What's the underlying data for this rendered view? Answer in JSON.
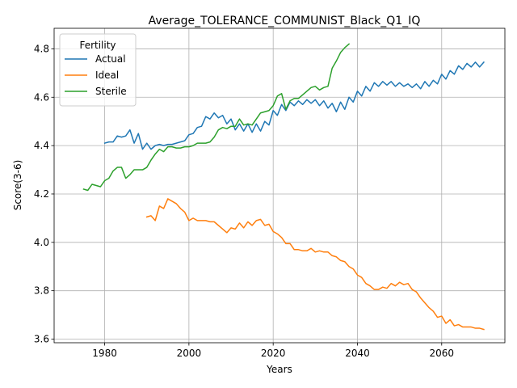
{
  "chart_data": {
    "type": "line",
    "title": "Average_TOLERANCE_COMMUNIST_Black_Q1_IQ",
    "xlabel": "Years",
    "ylabel": "Score(3-6)",
    "xlim": [
      1968,
      2075
    ],
    "ylim": [
      3.585,
      4.885
    ],
    "xticks": [
      1980,
      2000,
      2020,
      2040,
      2060
    ],
    "xtick_labels": [
      "1980",
      "2000",
      "2020",
      "2040",
      "2060"
    ],
    "yticks": [
      3.6,
      3.8,
      4.0,
      4.2,
      4.4,
      4.6,
      4.8
    ],
    "ytick_labels": [
      "3.6",
      "3.8",
      "4.0",
      "4.2",
      "4.4",
      "4.6",
      "4.8"
    ],
    "grid": true,
    "legend": {
      "title": "Fertility",
      "placement": "top-left",
      "entries": [
        "Actual",
        "Ideal",
        "Sterile"
      ]
    },
    "series": [
      {
        "name": "Actual",
        "color": "#1f77b4",
        "x": [
          1980,
          1981,
          1982,
          1983,
          1984,
          1985,
          1986,
          1987,
          1988,
          1989,
          1990,
          1991,
          1992,
          1993,
          1994,
          1995,
          1996,
          1997,
          1998,
          1999,
          2000,
          2001,
          2002,
          2003,
          2004,
          2005,
          2006,
          2007,
          2008,
          2009,
          2010,
          2011,
          2012,
          2013,
          2014,
          2015,
          2016,
          2017,
          2018,
          2019,
          2020,
          2021,
          2022,
          2023,
          2024,
          2025,
          2026,
          2027,
          2028,
          2029,
          2030,
          2031,
          2032,
          2033,
          2034,
          2035,
          2036,
          2037,
          2038,
          2039,
          2040,
          2041,
          2042,
          2043,
          2044,
          2045,
          2046,
          2047,
          2048,
          2049,
          2050,
          2051,
          2052,
          2053,
          2054,
          2055,
          2056,
          2057,
          2058,
          2059,
          2060,
          2061,
          2062,
          2063,
          2064,
          2065,
          2066,
          2067,
          2068,
          2069,
          2070
        ],
        "y": [
          4.41,
          4.415,
          4.415,
          4.44,
          4.435,
          4.44,
          4.465,
          4.41,
          4.45,
          4.385,
          4.41,
          4.385,
          4.4,
          4.405,
          4.4,
          4.405,
          4.405,
          4.41,
          4.415,
          4.42,
          4.445,
          4.45,
          4.475,
          4.48,
          4.52,
          4.51,
          4.535,
          4.515,
          4.525,
          4.49,
          4.51,
          4.465,
          4.49,
          4.46,
          4.49,
          4.455,
          4.49,
          4.46,
          4.5,
          4.485,
          4.545,
          4.525,
          4.57,
          4.545,
          4.58,
          4.565,
          4.585,
          4.57,
          4.59,
          4.575,
          4.59,
          4.565,
          4.585,
          4.555,
          4.575,
          4.54,
          4.58,
          4.55,
          4.6,
          4.58,
          4.625,
          4.605,
          4.645,
          4.625,
          4.66,
          4.645,
          4.665,
          4.65,
          4.665,
          4.645,
          4.66,
          4.645,
          4.655,
          4.64,
          4.655,
          4.635,
          4.665,
          4.645,
          4.67,
          4.655,
          4.695,
          4.675,
          4.71,
          4.695,
          4.73,
          4.715,
          4.74,
          4.725,
          4.745,
          4.725,
          4.745
        ]
      },
      {
        "name": "Ideal",
        "color": "#ff7f0e",
        "x": [
          1990,
          1991,
          1992,
          1993,
          1994,
          1995,
          1996,
          1997,
          1998,
          1999,
          2000,
          2001,
          2002,
          2003,
          2004,
          2005,
          2006,
          2007,
          2008,
          2009,
          2010,
          2011,
          2012,
          2013,
          2014,
          2015,
          2016,
          2017,
          2018,
          2019,
          2020,
          2021,
          2022,
          2023,
          2024,
          2025,
          2026,
          2027,
          2028,
          2029,
          2030,
          2031,
          2032,
          2033,
          2034,
          2035,
          2036,
          2037,
          2038,
          2039,
          2040,
          2041,
          2042,
          2043,
          2044,
          2045,
          2046,
          2047,
          2048,
          2049,
          2050,
          2051,
          2052,
          2053,
          2054,
          2055,
          2056,
          2057,
          2058,
          2059,
          2060,
          2061,
          2062,
          2063,
          2064,
          2065,
          2066,
          2067,
          2068,
          2069,
          2070
        ],
        "y": [
          4.105,
          4.11,
          4.09,
          4.15,
          4.14,
          4.18,
          4.17,
          4.16,
          4.14,
          4.125,
          4.09,
          4.1,
          4.09,
          4.09,
          4.09,
          4.085,
          4.085,
          4.07,
          4.055,
          4.04,
          4.06,
          4.055,
          4.08,
          4.06,
          4.085,
          4.07,
          4.09,
          4.095,
          4.07,
          4.075,
          4.045,
          4.035,
          4.02,
          3.995,
          3.995,
          3.97,
          3.97,
          3.965,
          3.965,
          3.975,
          3.96,
          3.965,
          3.96,
          3.96,
          3.945,
          3.94,
          3.925,
          3.92,
          3.9,
          3.89,
          3.865,
          3.855,
          3.83,
          3.82,
          3.805,
          3.805,
          3.815,
          3.81,
          3.83,
          3.82,
          3.835,
          3.825,
          3.83,
          3.805,
          3.795,
          3.77,
          3.75,
          3.73,
          3.715,
          3.69,
          3.695,
          3.665,
          3.68,
          3.655,
          3.66,
          3.65,
          3.65,
          3.65,
          3.645,
          3.645,
          3.64
        ]
      },
      {
        "name": "Sterile",
        "color": "#2ca02c",
        "x": [
          1975,
          1976,
          1977,
          1978,
          1979,
          1980,
          1981,
          1982,
          1983,
          1984,
          1985,
          1986,
          1987,
          1988,
          1989,
          1990,
          1991,
          1992,
          1993,
          1994,
          1995,
          1996,
          1997,
          1998,
          1999,
          2000,
          2001,
          2002,
          2003,
          2004,
          2005,
          2006,
          2007,
          2008,
          2009,
          2010,
          2011,
          2012,
          2013,
          2014,
          2015,
          2016,
          2017,
          2018,
          2019,
          2020,
          2021,
          2022,
          2023,
          2024,
          2025,
          2026,
          2027,
          2028,
          2029,
          2030,
          2031,
          2032,
          2033,
          2034,
          2035,
          2036,
          2037,
          2038
        ],
        "y": [
          4.22,
          4.215,
          4.24,
          4.235,
          4.23,
          4.255,
          4.265,
          4.295,
          4.31,
          4.31,
          4.265,
          4.28,
          4.3,
          4.3,
          4.3,
          4.31,
          4.34,
          4.365,
          4.385,
          4.375,
          4.395,
          4.395,
          4.39,
          4.39,
          4.395,
          4.395,
          4.4,
          4.41,
          4.41,
          4.41,
          4.415,
          4.435,
          4.465,
          4.475,
          4.47,
          4.48,
          4.48,
          4.51,
          4.485,
          4.49,
          4.485,
          4.51,
          4.535,
          4.54,
          4.545,
          4.565,
          4.605,
          4.615,
          4.55,
          4.585,
          4.595,
          4.595,
          4.61,
          4.625,
          4.64,
          4.645,
          4.63,
          4.64,
          4.645,
          4.72,
          4.75,
          4.785,
          4.805,
          4.82
        ]
      }
    ]
  }
}
